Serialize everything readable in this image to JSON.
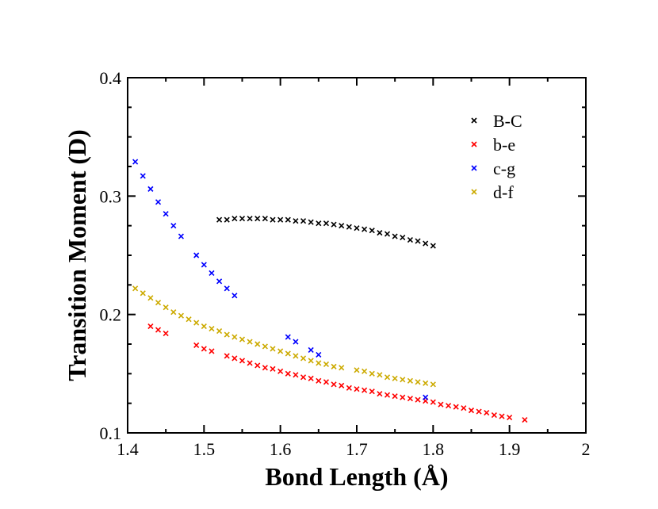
{
  "chart_data": {
    "type": "scatter",
    "title": "",
    "xlabel": "Bond Length (Å)",
    "ylabel": "Transition Moment (D)",
    "xlim": [
      1.4,
      2.0
    ],
    "ylim": [
      0.1,
      0.4
    ],
    "xticks": [
      "1.4",
      "1.5",
      "1.6",
      "1.7",
      "1.8",
      "1.9",
      "2"
    ],
    "yticks": [
      "0.1",
      "0.2",
      "0.3",
      "0.4"
    ],
    "legend_position": "top-right",
    "series": [
      {
        "name": "B-C",
        "color": "#000000",
        "x": [
          1.52,
          1.53,
          1.54,
          1.55,
          1.56,
          1.57,
          1.58,
          1.59,
          1.6,
          1.61,
          1.62,
          1.63,
          1.64,
          1.65,
          1.66,
          1.67,
          1.68,
          1.69,
          1.7,
          1.71,
          1.72,
          1.73,
          1.74,
          1.75,
          1.76,
          1.77,
          1.78,
          1.79,
          1.8
        ],
        "y": [
          0.28,
          0.28,
          0.281,
          0.281,
          0.281,
          0.281,
          0.281,
          0.28,
          0.28,
          0.28,
          0.279,
          0.279,
          0.278,
          0.277,
          0.277,
          0.276,
          0.275,
          0.274,
          0.273,
          0.272,
          0.271,
          0.269,
          0.268,
          0.266,
          0.265,
          0.263,
          0.262,
          0.26,
          0.258
        ]
      },
      {
        "name": "b-e",
        "color": "#ff0000",
        "x": [
          1.43,
          1.44,
          1.45,
          1.49,
          1.5,
          1.51,
          1.53,
          1.54,
          1.55,
          1.56,
          1.57,
          1.58,
          1.59,
          1.6,
          1.61,
          1.62,
          1.63,
          1.64,
          1.65,
          1.66,
          1.67,
          1.68,
          1.69,
          1.7,
          1.71,
          1.72,
          1.73,
          1.74,
          1.75,
          1.76,
          1.77,
          1.78,
          1.79,
          1.8,
          1.81,
          1.82,
          1.83,
          1.84,
          1.85,
          1.86,
          1.87,
          1.88,
          1.89,
          1.9,
          1.92
        ],
        "y": [
          0.19,
          0.187,
          0.184,
          0.174,
          0.171,
          0.169,
          0.165,
          0.163,
          0.161,
          0.159,
          0.157,
          0.155,
          0.154,
          0.152,
          0.15,
          0.149,
          0.147,
          0.146,
          0.144,
          0.143,
          0.141,
          0.14,
          0.138,
          0.137,
          0.136,
          0.135,
          0.133,
          0.132,
          0.131,
          0.13,
          0.129,
          0.128,
          0.127,
          0.126,
          0.124,
          0.123,
          0.122,
          0.121,
          0.119,
          0.118,
          0.117,
          0.115,
          0.114,
          0.113,
          0.111
        ]
      },
      {
        "name": "c-g",
        "color": "#0000ff",
        "x": [
          1.41,
          1.42,
          1.43,
          1.44,
          1.45,
          1.46,
          1.47,
          1.49,
          1.5,
          1.51,
          1.52,
          1.53,
          1.54,
          1.61,
          1.62,
          1.64,
          1.65,
          1.79
        ],
        "y": [
          0.329,
          0.317,
          0.306,
          0.295,
          0.285,
          0.275,
          0.266,
          0.25,
          0.242,
          0.235,
          0.228,
          0.222,
          0.216,
          0.181,
          0.177,
          0.17,
          0.166,
          0.13
        ]
      },
      {
        "name": "d-f",
        "color": "#ccaa00",
        "x": [
          1.41,
          1.42,
          1.43,
          1.44,
          1.45,
          1.46,
          1.47,
          1.48,
          1.49,
          1.5,
          1.51,
          1.52,
          1.53,
          1.54,
          1.55,
          1.56,
          1.57,
          1.58,
          1.59,
          1.6,
          1.61,
          1.62,
          1.63,
          1.64,
          1.65,
          1.66,
          1.67,
          1.68,
          1.7,
          1.71,
          1.72,
          1.73,
          1.74,
          1.75,
          1.76,
          1.77,
          1.78,
          1.79,
          1.8
        ],
        "y": [
          0.222,
          0.218,
          0.214,
          0.21,
          0.206,
          0.202,
          0.199,
          0.196,
          0.193,
          0.19,
          0.188,
          0.186,
          0.183,
          0.181,
          0.179,
          0.177,
          0.175,
          0.173,
          0.171,
          0.169,
          0.167,
          0.165,
          0.163,
          0.161,
          0.159,
          0.158,
          0.156,
          0.155,
          0.153,
          0.152,
          0.15,
          0.149,
          0.147,
          0.146,
          0.145,
          0.144,
          0.143,
          0.142,
          0.141
        ]
      }
    ]
  }
}
